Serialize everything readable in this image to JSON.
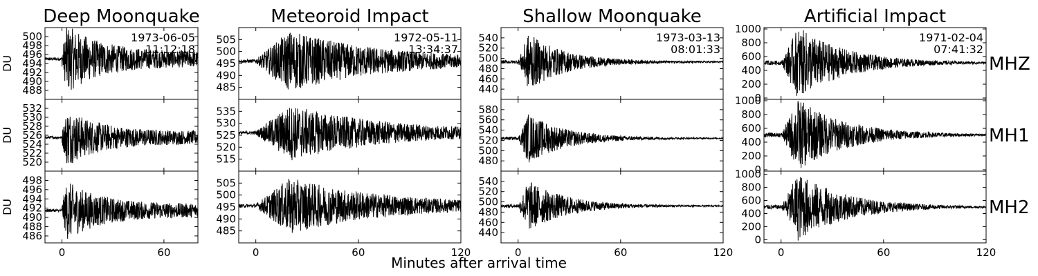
{
  "chart_data": {
    "type": "line",
    "xlabel": "Minutes after arrival time",
    "ylabel": "DU",
    "channels": [
      "MHZ",
      "MH1",
      "MH2"
    ],
    "columns": [
      {
        "title": "Deep Moonquake",
        "date": "1973-06-05",
        "time": "11:12:18",
        "xlim": [
          -10,
          80
        ],
        "xticks": [
          0,
          60
        ],
        "envelope": {
          "onset": 0,
          "peak": 3,
          "decay": 20,
          "floor_frac": 0.28
        },
        "panels": [
          {
            "channel": "MHZ",
            "ylim": [
              486,
              502
            ],
            "yticks": [
              488,
              490,
              492,
              494,
              496,
              498,
              500
            ],
            "baseline": 495,
            "amplitude": 6
          },
          {
            "channel": "MH1",
            "ylim": [
              518,
              534
            ],
            "yticks": [
              520,
              522,
              524,
              526,
              528,
              530,
              532
            ],
            "baseline": 525.5,
            "amplitude": 5
          },
          {
            "channel": "MH2",
            "ylim": [
              484.5,
              500
            ],
            "yticks": [
              486,
              488,
              490,
              492,
              494,
              496,
              498
            ],
            "baseline": 491.5,
            "amplitude": 5
          }
        ]
      },
      {
        "title": "Meteoroid Impact",
        "date": "1972-05-11",
        "time": "13:34:37",
        "xlim": [
          -10,
          120
        ],
        "xticks": [
          0,
          60,
          120
        ],
        "envelope": {
          "onset": 0,
          "peak": 20,
          "decay": 55,
          "floor_frac": 0.07
        },
        "panels": [
          {
            "channel": "MHZ",
            "ylim": [
              480,
              510
            ],
            "yticks": [
              485,
              490,
              495,
              500,
              505
            ],
            "baseline": 496,
            "amplitude": 12
          },
          {
            "channel": "MH1",
            "ylim": [
              510,
              540
            ],
            "yticks": [
              515,
              520,
              525,
              530,
              535
            ],
            "baseline": 526,
            "amplitude": 11
          },
          {
            "channel": "MH2",
            "ylim": [
              480,
              510
            ],
            "yticks": [
              485,
              490,
              495,
              500,
              505
            ],
            "baseline": 495.5,
            "amplitude": 11
          }
        ]
      },
      {
        "title": "Shallow Moonquake",
        "date": "1973-03-13",
        "time": "08:01:33",
        "xlim": [
          -10,
          120
        ],
        "xticks": [
          0,
          60,
          120
        ],
        "envelope": {
          "onset": 0,
          "peak": 6,
          "decay": 22,
          "floor_frac": 0.02
        },
        "panels": [
          {
            "channel": "MHZ",
            "ylim": [
              420,
              560
            ],
            "yticks": [
              440,
              460,
              480,
              500,
              520,
              540
            ],
            "baseline": 493,
            "amplitude": 55
          },
          {
            "channel": "MH1",
            "ylim": [
              460,
              600
            ],
            "yticks": [
              480,
              500,
              520,
              540,
              560,
              580
            ],
            "baseline": 524,
            "amplitude": 48
          },
          {
            "channel": "MH2",
            "ylim": [
              420,
              560
            ],
            "yticks": [
              440,
              460,
              480,
              500,
              520,
              540
            ],
            "baseline": 492,
            "amplitude": 50
          }
        ]
      },
      {
        "title": "Artificial Impact",
        "date": "1971-02-04",
        "time": "07:41:32",
        "xlim": [
          -10,
          120
        ],
        "xticks": [
          0,
          60,
          120
        ],
        "envelope": {
          "onset": 0,
          "peak": 10,
          "decay": 28,
          "floor_frac": 0.01
        },
        "panels": [
          {
            "channel": "MHZ",
            "ylim": [
              -20,
              1020
            ],
            "yticks": [
              0,
              200,
              400,
              600,
              800,
              1000
            ],
            "baseline": 510,
            "amplitude": 520
          },
          {
            "channel": "MH1",
            "ylim": [
              -20,
              1020
            ],
            "yticks": [
              0,
              200,
              400,
              600,
              800,
              1000
            ],
            "baseline": 505,
            "amplitude": 520
          },
          {
            "channel": "MH2",
            "ylim": [
              -50,
              1050
            ],
            "yticks": [
              0,
              200,
              400,
              600,
              800,
              1000
            ],
            "baseline": 500,
            "amplitude": 520
          }
        ]
      }
    ]
  }
}
